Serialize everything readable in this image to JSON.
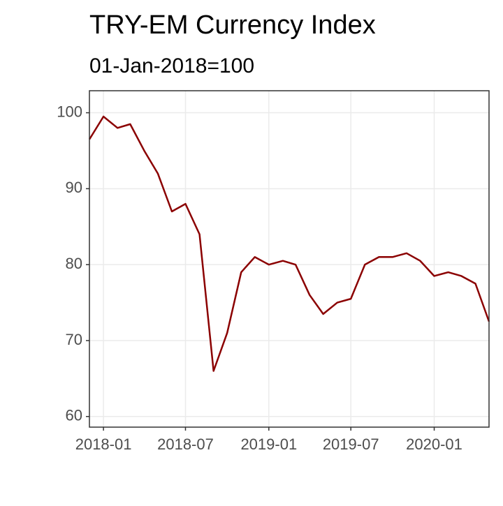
{
  "chart_data": {
    "type": "line",
    "title": "TRY-EM Currency Index",
    "subtitle": "01-Jan-2018=100",
    "x": [
      "2017-12",
      "2018-01",
      "2018-02",
      "2018-03",
      "2018-04",
      "2018-05",
      "2018-06",
      "2018-07",
      "2018-08",
      "2018-09",
      "2018-10",
      "2018-11",
      "2018-12",
      "2019-01",
      "2019-02",
      "2019-03",
      "2019-04",
      "2019-05",
      "2019-06",
      "2019-07",
      "2019-08",
      "2019-09",
      "2019-10",
      "2019-11",
      "2019-12",
      "2020-01",
      "2020-02",
      "2020-03",
      "2020-04",
      "2020-05"
    ],
    "series": [
      {
        "color": "#8b0000",
        "values": [
          96.5,
          99.5,
          98,
          98.5,
          95,
          92,
          87,
          88,
          84,
          66,
          71,
          79,
          81,
          80,
          80.5,
          80,
          76,
          73.5,
          75,
          75.5,
          80,
          81,
          81,
          81.5,
          80.5,
          78.5,
          79,
          78.5,
          77.5,
          72.5
        ]
      }
    ],
    "xlim": [
      "2017-12",
      "2020-05"
    ],
    "xticks": [
      "2018-01",
      "2018-07",
      "2019-01",
      "2019-07",
      "2020-01"
    ],
    "ylim": [
      58.6,
      102.9
    ],
    "yticks": [
      60,
      70,
      80,
      90,
      100
    ],
    "grid": true
  }
}
